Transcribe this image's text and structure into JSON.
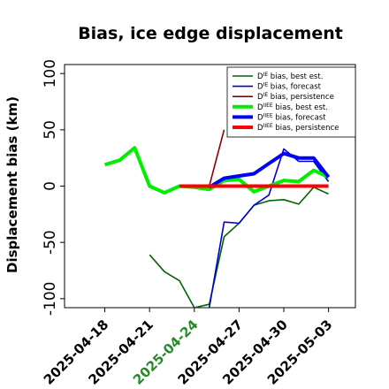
{
  "chart_data": {
    "type": "line",
    "title": "Bias, ice edge displacement",
    "xlabel": "",
    "ylabel": "Displacement bias (km)",
    "x_tick_labels": [
      {
        "label": "2025-04-18",
        "day": 0,
        "color": "#000000"
      },
      {
        "label": "2025-04-21",
        "day": 3,
        "color": "#000000"
      },
      {
        "label": "2025-04-24",
        "day": 6,
        "color": "#228B22"
      },
      {
        "label": "2025-04-27",
        "day": 9,
        "color": "#000000"
      },
      {
        "label": "2025-04-30",
        "day": 12,
        "color": "#000000"
      },
      {
        "label": "2025-05-03",
        "day": 15,
        "color": "#000000"
      }
    ],
    "xlim_days": [
      -2.7,
      16.8
    ],
    "ylim": [
      -108,
      108
    ],
    "y_ticks": [
      -100,
      -50,
      0,
      50,
      100
    ],
    "legend_position": "top-right",
    "series": [
      {
        "name": "D^IE bias, best est.",
        "sup": "IE",
        "rest": " bias, best est.",
        "color": "#006400",
        "width": 1.6,
        "points": [
          [
            3,
            -61
          ],
          [
            4,
            -76
          ],
          [
            5,
            -84
          ],
          [
            6,
            -108
          ],
          [
            7,
            -105
          ],
          [
            8,
            -45
          ],
          [
            9,
            -33
          ],
          [
            10,
            -17
          ],
          [
            11,
            -13
          ],
          [
            12,
            -12
          ],
          [
            13,
            -16
          ],
          [
            14,
            -1
          ],
          [
            15,
            -7
          ]
        ]
      },
      {
        "name": "D^IE bias, forecast",
        "sup": "IE",
        "rest": " bias, forecast",
        "color": "#0000CD",
        "width": 1.6,
        "points": [
          [
            7,
            -108
          ],
          [
            8,
            -32
          ],
          [
            9,
            -33
          ],
          [
            10,
            -17
          ],
          [
            11,
            -8
          ],
          [
            12,
            33
          ],
          [
            13,
            22
          ],
          [
            14,
            22
          ],
          [
            15,
            4
          ]
        ]
      },
      {
        "name": "D^IE bias, persistence",
        "sup": "IE",
        "rest": " bias, persistence",
        "color": "#8B0000",
        "width": 1.6,
        "points": [
          [
            5,
            0
          ],
          [
            6,
            0
          ],
          [
            7,
            0
          ],
          [
            8,
            50
          ]
        ]
      },
      {
        "name": "D^IIEE bias, best est.",
        "sup": "IIEE",
        "rest": " bias, best est.",
        "color": "#00EE00",
        "width": 4,
        "points": [
          [
            0,
            19
          ],
          [
            1,
            23
          ],
          [
            2,
            34
          ],
          [
            3,
            0
          ],
          [
            4,
            -6
          ],
          [
            5,
            0
          ],
          [
            6,
            -1
          ],
          [
            7,
            -3
          ],
          [
            8,
            5
          ],
          [
            9,
            6
          ],
          [
            10,
            -5
          ],
          [
            11,
            0
          ],
          [
            12,
            5
          ],
          [
            13,
            4
          ],
          [
            14,
            14
          ],
          [
            15,
            8
          ]
        ]
      },
      {
        "name": "D^IIEE bias, forecast",
        "sup": "IIEE",
        "rest": " bias, forecast",
        "color": "#0000FF",
        "width": 4,
        "points": [
          [
            7,
            -1
          ],
          [
            8,
            7
          ],
          [
            9,
            9
          ],
          [
            10,
            11
          ],
          [
            11,
            20
          ],
          [
            12,
            29
          ],
          [
            13,
            25
          ],
          [
            14,
            25
          ],
          [
            15,
            8
          ]
        ]
      },
      {
        "name": "D^IIEE bias, persistence",
        "sup": "IIEE",
        "rest": " bias, persistence",
        "color": "#FF0000",
        "width": 4,
        "points": [
          [
            5,
            0
          ],
          [
            6,
            0
          ],
          [
            7,
            0
          ],
          [
            8,
            0
          ],
          [
            9,
            0
          ],
          [
            10,
            0
          ],
          [
            11,
            0
          ],
          [
            12,
            0
          ],
          [
            13,
            0
          ],
          [
            14,
            0
          ],
          [
            15,
            0
          ]
        ]
      }
    ]
  }
}
